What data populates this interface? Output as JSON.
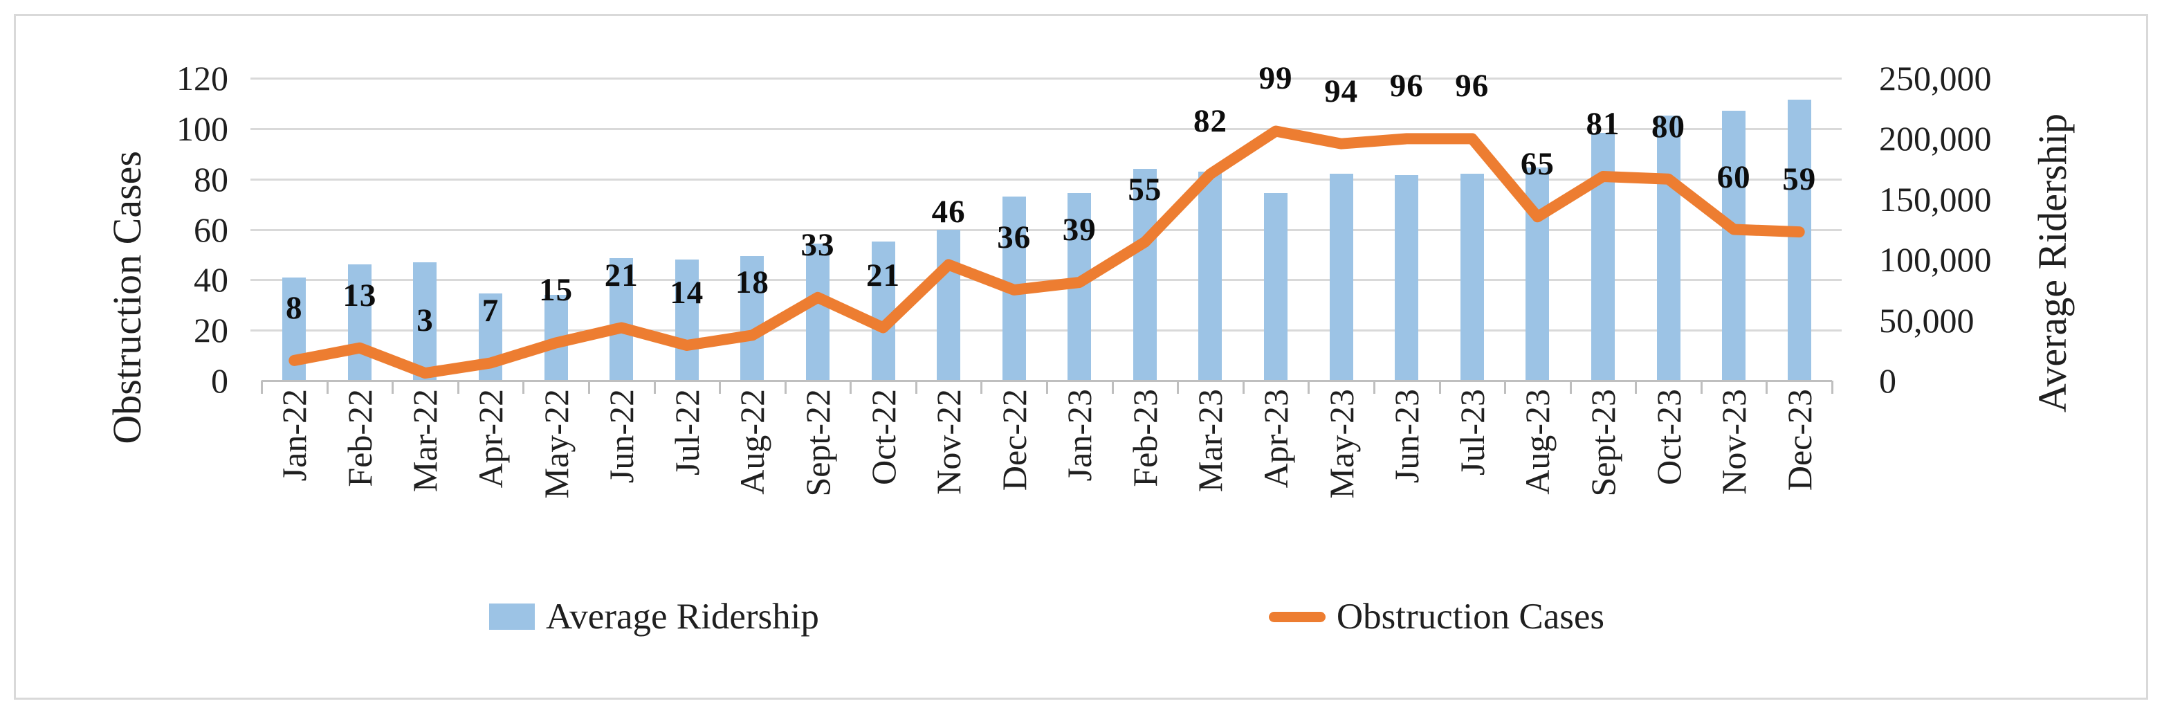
{
  "figure": {
    "background": "#FFFFFF",
    "border_color": "#D9D9D9",
    "gridline_color": "#D9D9D9",
    "axis_line_color": "#BFBFBF"
  },
  "chart_data": {
    "type": "combo_bar_line",
    "grid": true,
    "categories": [
      "Jan-22",
      "Feb-22",
      "Mar-22",
      "Apr-22",
      "May-22",
      "Jun-22",
      "Jul-22",
      "Aug-22",
      "Sept-22",
      "Oct-22",
      "Nov-22",
      "Dec-22",
      "Jan-23",
      "Feb-23",
      "Mar-23",
      "Apr-23",
      "May-23",
      "Jun-23",
      "Jul-23",
      "Aug-23",
      "Sept-23",
      "Oct-23",
      "Nov-23",
      "Dec-23"
    ],
    "series": [
      {
        "name": "Average Ridership",
        "type": "bar",
        "axis": "right",
        "color": "#9CC3E5",
        "values": [
          85000,
          96000,
          98000,
          72000,
          71000,
          101000,
          100000,
          103000,
          113000,
          115000,
          125000,
          152000,
          155000,
          175000,
          173000,
          155000,
          171000,
          170000,
          171000,
          176000,
          205000,
          219000,
          223000,
          232000
        ]
      },
      {
        "name": "Obstruction Cases",
        "type": "line",
        "axis": "left",
        "color": "#ED7D31",
        "data_labels": true,
        "values": [
          8,
          13,
          3,
          7,
          15,
          21,
          14,
          18,
          33,
          21,
          46,
          36,
          39,
          55,
          82,
          99,
          94,
          96,
          96,
          65,
          81,
          80,
          60,
          59
        ]
      }
    ],
    "left_axis": {
      "title": "Obstruction Cases",
      "min": 0,
      "max": 120,
      "step": 20,
      "tick_labels": [
        "0",
        "20",
        "40",
        "60",
        "80",
        "100",
        "120"
      ]
    },
    "right_axis": {
      "title": "Average Ridership",
      "min": 0,
      "max": 250000,
      "step": 50000,
      "tick_labels": [
        "0",
        "50,000",
        "100,000",
        "150,000",
        "200,000",
        "250,000"
      ]
    },
    "legend": {
      "position": "bottom",
      "items": [
        "Average Ridership",
        "Obstruction Cases"
      ]
    }
  }
}
